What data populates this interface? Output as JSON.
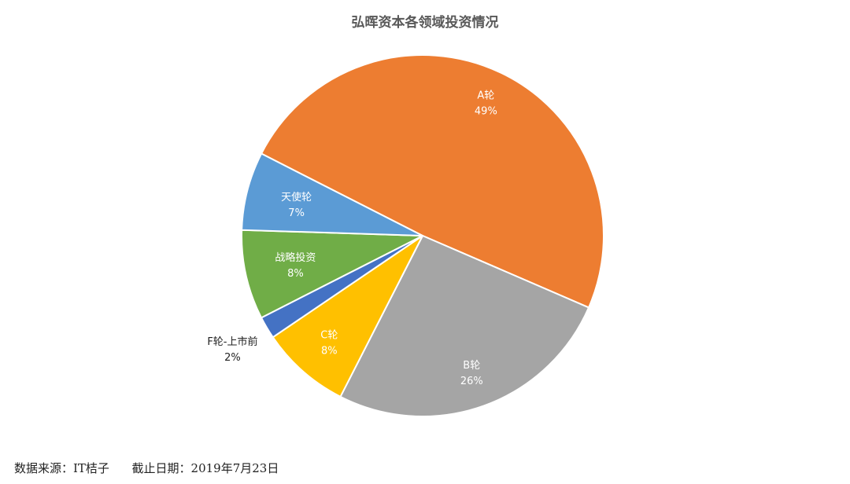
{
  "chart_data": {
    "type": "pie",
    "title": "弘晖资本各领域投资情况",
    "slices": [
      {
        "name": "A轮",
        "percent": "49%",
        "value": 49,
        "color": "#ED7D31"
      },
      {
        "name": "B轮",
        "percent": "26%",
        "value": 26,
        "color": "#A5A5A5"
      },
      {
        "name": "C轮",
        "percent": "8%",
        "value": 8,
        "color": "#FFC000"
      },
      {
        "name": "F轮-上市前",
        "percent": "2%",
        "value": 2,
        "color": "#4472C4"
      },
      {
        "name": "战略投资",
        "percent": "8%",
        "value": 8,
        "color": "#70AD47"
      },
      {
        "name": "天使轮",
        "percent": "7%",
        "value": 7,
        "color": "#5B9BD5"
      }
    ],
    "legend": "none"
  },
  "footer": {
    "source": "数据来源：IT桔子",
    "date": "截止日期：2019年7月23日"
  }
}
